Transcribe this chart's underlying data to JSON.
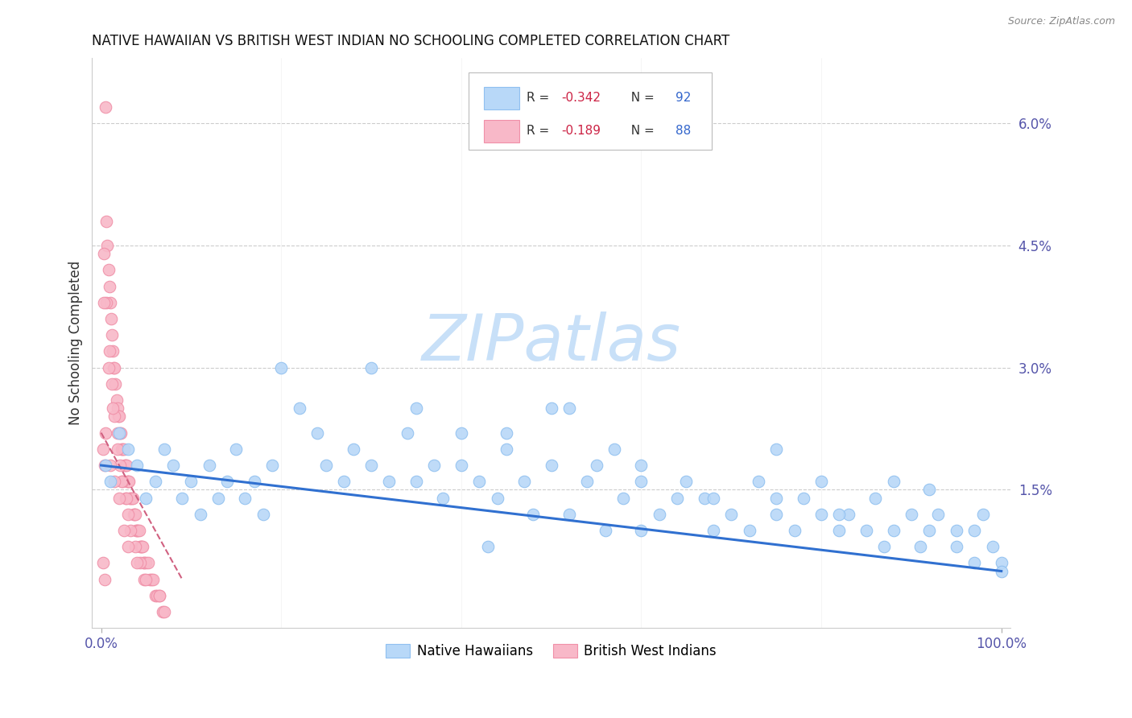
{
  "title": "NATIVE HAWAIIAN VS BRITISH WEST INDIAN NO SCHOOLING COMPLETED CORRELATION CHART",
  "source": "Source: ZipAtlas.com",
  "ylabel": "No Schooling Completed",
  "right_ytick_vals": [
    0.015,
    0.03,
    0.045,
    0.06
  ],
  "right_ytick_labels": [
    "1.5%",
    "3.0%",
    "4.5%",
    "6.0%"
  ],
  "xmin": 0.0,
  "xmax": 1.0,
  "ymin": -0.002,
  "ymax": 0.068,
  "blue_fill": "#B8D8F8",
  "blue_edge": "#90C0F0",
  "pink_fill": "#F8B8C8",
  "pink_edge": "#F090A8",
  "blue_line_color": "#3070D0",
  "pink_line_color": "#D06080",
  "watermark_color": "#C8E0F8",
  "grid_color": "#CCCCCC",
  "tick_color": "#5555AA",
  "title_color": "#111111",
  "source_color": "#888888",
  "ylabel_color": "#333333",
  "nh_x": [
    0.005,
    0.01,
    0.02,
    0.03,
    0.04,
    0.05,
    0.06,
    0.07,
    0.08,
    0.09,
    0.1,
    0.11,
    0.12,
    0.13,
    0.14,
    0.15,
    0.16,
    0.17,
    0.18,
    0.19,
    0.2,
    0.22,
    0.24,
    0.25,
    0.27,
    0.28,
    0.3,
    0.32,
    0.34,
    0.35,
    0.37,
    0.38,
    0.4,
    0.4,
    0.42,
    0.44,
    0.45,
    0.47,
    0.48,
    0.5,
    0.5,
    0.52,
    0.54,
    0.55,
    0.57,
    0.58,
    0.6,
    0.6,
    0.62,
    0.64,
    0.65,
    0.67,
    0.68,
    0.7,
    0.72,
    0.73,
    0.75,
    0.75,
    0.77,
    0.78,
    0.8,
    0.8,
    0.82,
    0.83,
    0.85,
    0.86,
    0.87,
    0.88,
    0.9,
    0.91,
    0.92,
    0.93,
    0.95,
    0.95,
    0.97,
    0.97,
    0.98,
    0.99,
    1.0,
    1.0,
    0.3,
    0.35,
    0.45,
    0.52,
    0.6,
    0.68,
    0.75,
    0.82,
    0.88,
    0.92,
    0.43,
    0.56
  ],
  "nh_y": [
    0.018,
    0.016,
    0.022,
    0.02,
    0.018,
    0.014,
    0.016,
    0.02,
    0.018,
    0.014,
    0.016,
    0.012,
    0.018,
    0.014,
    0.016,
    0.02,
    0.014,
    0.016,
    0.012,
    0.018,
    0.03,
    0.025,
    0.022,
    0.018,
    0.016,
    0.02,
    0.018,
    0.016,
    0.022,
    0.016,
    0.018,
    0.014,
    0.022,
    0.018,
    0.016,
    0.014,
    0.02,
    0.016,
    0.012,
    0.025,
    0.018,
    0.012,
    0.016,
    0.018,
    0.02,
    0.014,
    0.01,
    0.016,
    0.012,
    0.014,
    0.016,
    0.014,
    0.01,
    0.012,
    0.01,
    0.016,
    0.014,
    0.012,
    0.01,
    0.014,
    0.012,
    0.016,
    0.01,
    0.012,
    0.01,
    0.014,
    0.008,
    0.01,
    0.012,
    0.008,
    0.01,
    0.012,
    0.01,
    0.008,
    0.01,
    0.006,
    0.012,
    0.008,
    0.006,
    0.005,
    0.03,
    0.025,
    0.022,
    0.025,
    0.018,
    0.014,
    0.02,
    0.012,
    0.016,
    0.015,
    0.008,
    0.01
  ],
  "bwi_x": [
    0.002,
    0.004,
    0.005,
    0.006,
    0.007,
    0.008,
    0.009,
    0.01,
    0.011,
    0.012,
    0.013,
    0.014,
    0.015,
    0.016,
    0.017,
    0.018,
    0.019,
    0.02,
    0.021,
    0.022,
    0.023,
    0.024,
    0.025,
    0.026,
    0.027,
    0.028,
    0.029,
    0.03,
    0.031,
    0.032,
    0.033,
    0.034,
    0.035,
    0.036,
    0.037,
    0.038,
    0.039,
    0.04,
    0.041,
    0.042,
    0.043,
    0.044,
    0.045,
    0.046,
    0.047,
    0.048,
    0.05,
    0.052,
    0.054,
    0.056,
    0.058,
    0.06,
    0.062,
    0.065,
    0.068,
    0.07,
    0.003,
    0.006,
    0.009,
    0.012,
    0.015,
    0.018,
    0.021,
    0.024,
    0.027,
    0.03,
    0.003,
    0.008,
    0.013,
    0.018,
    0.023,
    0.028,
    0.033,
    0.038,
    0.043,
    0.048,
    0.005,
    0.01,
    0.015,
    0.02,
    0.025,
    0.03,
    0.04,
    0.05,
    0.065,
    0.002,
    0.004
  ],
  "bwi_y": [
    0.02,
    0.018,
    0.062,
    0.048,
    0.045,
    0.042,
    0.04,
    0.038,
    0.036,
    0.034,
    0.032,
    0.03,
    0.03,
    0.028,
    0.026,
    0.025,
    0.024,
    0.024,
    0.022,
    0.022,
    0.02,
    0.02,
    0.02,
    0.018,
    0.018,
    0.018,
    0.016,
    0.016,
    0.016,
    0.014,
    0.014,
    0.014,
    0.014,
    0.012,
    0.012,
    0.012,
    0.01,
    0.01,
    0.01,
    0.01,
    0.008,
    0.008,
    0.008,
    0.008,
    0.006,
    0.006,
    0.006,
    0.006,
    0.004,
    0.004,
    0.004,
    0.002,
    0.002,
    0.002,
    0.0,
    0.0,
    0.044,
    0.038,
    0.032,
    0.028,
    0.024,
    0.022,
    0.018,
    0.016,
    0.014,
    0.012,
    0.038,
    0.03,
    0.025,
    0.02,
    0.016,
    0.014,
    0.01,
    0.008,
    0.006,
    0.004,
    0.022,
    0.018,
    0.016,
    0.014,
    0.01,
    0.008,
    0.006,
    0.004,
    0.002,
    0.006,
    0.004
  ],
  "nh_line_x": [
    0.0,
    1.0
  ],
  "nh_line_y": [
    0.018,
    0.005
  ],
  "bwi_line_x": [
    0.0,
    0.09
  ],
  "bwi_line_y": [
    0.022,
    0.004
  ]
}
